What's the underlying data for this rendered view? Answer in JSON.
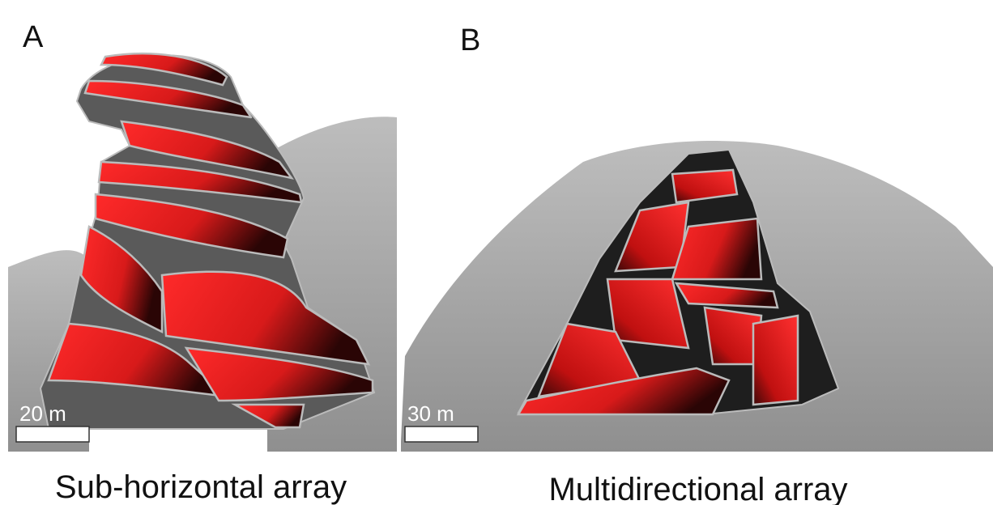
{
  "panels": [
    {
      "label": "A",
      "scale": "20 m",
      "caption": "Sub-horizontal array"
    },
    {
      "label": "B",
      "scale": "30 m",
      "caption": "Multidirectional array"
    }
  ]
}
